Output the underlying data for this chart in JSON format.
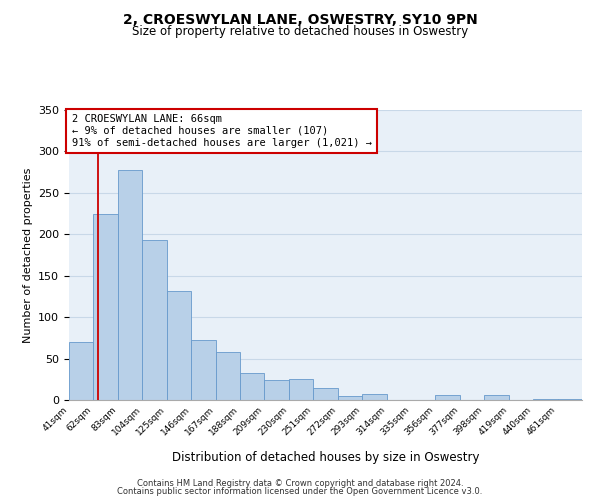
{
  "title": "2, CROESWYLAN LANE, OSWESTRY, SY10 9PN",
  "subtitle": "Size of property relative to detached houses in Oswestry",
  "xlabel": "Distribution of detached houses by size in Oswestry",
  "ylabel": "Number of detached properties",
  "bar_labels": [
    "41sqm",
    "62sqm",
    "83sqm",
    "104sqm",
    "125sqm",
    "146sqm",
    "167sqm",
    "188sqm",
    "209sqm",
    "230sqm",
    "251sqm",
    "272sqm",
    "293sqm",
    "314sqm",
    "335sqm",
    "356sqm",
    "377sqm",
    "398sqm",
    "419sqm",
    "440sqm",
    "461sqm"
  ],
  "bar_values": [
    70,
    224,
    277,
    193,
    132,
    72,
    58,
    33,
    24,
    25,
    15,
    5,
    7,
    0,
    0,
    6,
    0,
    6,
    0,
    1,
    1
  ],
  "bar_color": "#b8d0e8",
  "bar_edge_color": "#6699cc",
  "ylim": [
    0,
    350
  ],
  "yticks": [
    0,
    50,
    100,
    150,
    200,
    250,
    300,
    350
  ],
  "property_line_color": "#cc0000",
  "annotation_title": "2 CROESWYLAN LANE: 66sqm",
  "annotation_line1": "← 9% of detached houses are smaller (107)",
  "annotation_line2": "91% of semi-detached houses are larger (1,021) →",
  "footer_line1": "Contains HM Land Registry data © Crown copyright and database right 2024.",
  "footer_line2": "Contains public sector information licensed under the Open Government Licence v3.0.",
  "grid_color": "#c8d8e8",
  "background_color": "#e8f0f8"
}
